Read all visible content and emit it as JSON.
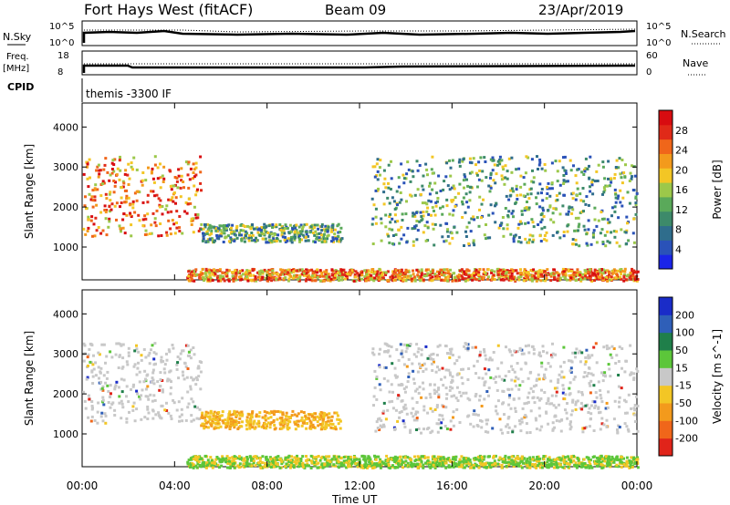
{
  "header": {
    "station": "Fort Hays West (fitACF)",
    "beam": "Beam 09",
    "date": "23/Apr/2019"
  },
  "panels": {
    "nsky_label": "N.Sky",
    "nsearch_label": "N.Search",
    "freq_label_1": "Freq.",
    "freq_label_2": "[MHz]",
    "nave_label": "Nave",
    "cpid_label": "CPID",
    "cpid_text": "themis -3300 IF",
    "nsky_ticks": [
      "10^5",
      "10^0"
    ],
    "nsearch_ticks": [
      "10^5",
      "10^0"
    ],
    "freq_ticks": [
      "18",
      "8"
    ],
    "nave_ticks": [
      "60",
      "0"
    ]
  },
  "chart_data": [
    {
      "type": "heatmap",
      "quantity": "power",
      "xlabel": "Time UT",
      "ylabel": "Slant Range [km]",
      "xlim": [
        0,
        24
      ],
      "ylim": [
        180,
        4600
      ],
      "xticks": [
        "00:00",
        "04:00",
        "08:00",
        "12:00",
        "16:00",
        "20:00",
        "00:00"
      ],
      "yticks": [
        1000,
        2000,
        3000,
        4000
      ],
      "colorbar": {
        "label": "Power [dB]",
        "ticks": [
          "4",
          "8",
          "12",
          "16",
          "20",
          "24",
          "28"
        ],
        "colors": [
          "#1a24e8",
          "#2a52b8",
          "#2f6d8c",
          "#3d8a6a",
          "#5aa95a",
          "#9cc84a",
          "#f3c625",
          "#f39a1c",
          "#f0661a",
          "#e02a18",
          "#d80c10"
        ]
      },
      "regions": [
        {
          "t": [
            0.0,
            5.1
          ],
          "range": [
            1300,
            3300
          ],
          "level": "high"
        },
        {
          "t": [
            5.1,
            11.2
          ],
          "range": [
            1150,
            1600
          ],
          "level": "mid"
        },
        {
          "t": [
            12.5,
            24.0
          ],
          "range": [
            1050,
            3300
          ],
          "level": "mid"
        },
        {
          "t": [
            4.5,
            24.0
          ],
          "range": [
            180,
            480
          ],
          "level": "high"
        }
      ]
    },
    {
      "type": "heatmap",
      "quantity": "velocity",
      "xlabel": "Time UT",
      "ylabel": "Slant Range [km]",
      "xlim": [
        0,
        24
      ],
      "ylim": [
        180,
        4600
      ],
      "xticks": [
        "00:00",
        "04:00",
        "08:00",
        "12:00",
        "16:00",
        "20:00",
        "00:00"
      ],
      "yticks": [
        1000,
        2000,
        3000,
        4000
      ],
      "colorbar": {
        "label": "Velocity [m s^-1]",
        "ticks": [
          "200",
          "100",
          "50",
          "15",
          "-15",
          "-50",
          "-100",
          "-200"
        ],
        "colors": [
          "#1a2cc8",
          "#2f5fb8",
          "#1f7f4a",
          "#5cc63a",
          "#c8c8c8",
          "#f3c625",
          "#f39a1c",
          "#f0661a",
          "#e0241a"
        ]
      },
      "regions": [
        {
          "t": [
            0.0,
            5.1
          ],
          "range": [
            1300,
            3300
          ],
          "level": "neutral"
        },
        {
          "t": [
            5.1,
            11.2
          ],
          "range": [
            1150,
            1600
          ],
          "level": "away"
        },
        {
          "t": [
            12.5,
            24.0
          ],
          "range": [
            1050,
            3300
          ],
          "level": "neutral"
        },
        {
          "t": [
            4.5,
            24.0
          ],
          "range": [
            180,
            480
          ],
          "level": "toward"
        }
      ]
    }
  ]
}
